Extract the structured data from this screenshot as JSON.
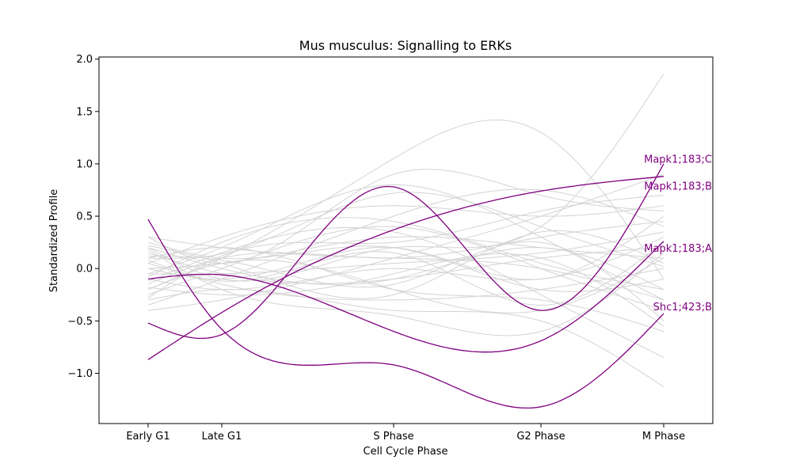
{
  "chart_data": {
    "type": "line",
    "title": "Mus musculus: Signalling to ERKs",
    "xlabel": "Cell Cycle Phase",
    "ylabel": "Standardized Profile",
    "categories": [
      "Early G1",
      "Late G1",
      "S Phase",
      "G2 Phase",
      "M Phase"
    ],
    "x": [
      0,
      0.6,
      2,
      3.2,
      4.2
    ],
    "xlim": [
      -0.4,
      4.6
    ],
    "ylim": [
      -1.48,
      2.02
    ],
    "yticks": [
      -1.0,
      -0.5,
      0.0,
      0.5,
      1.0,
      1.5,
      2.0
    ],
    "ytick_labels": [
      "−1.0",
      "−0.5",
      "0.0",
      "0.5",
      "1.0",
      "1.5",
      "2.0"
    ],
    "grid": false,
    "colors": {
      "background": "#6a6a6a",
      "highlight": "#800080",
      "axis": "#000000"
    },
    "highlighted": [
      {
        "name": "Mapk1;183;C",
        "values": [
          -0.52,
          -0.63,
          0.78,
          -0.4,
          1.0
        ]
      },
      {
        "name": "Mapk1;183;B",
        "values": [
          -0.87,
          -0.42,
          0.37,
          0.74,
          0.88
        ]
      },
      {
        "name": "Mapk1;183;A",
        "values": [
          -0.1,
          -0.06,
          -0.6,
          -0.69,
          0.26
        ]
      },
      {
        "name": "Shc1;423;B",
        "values": [
          0.47,
          -0.58,
          -0.92,
          -1.32,
          -0.43
        ]
      }
    ],
    "background_series": [
      [
        0.1,
        0.14,
        0.72,
        0.4,
        0.02
      ],
      [
        -0.2,
        0.1,
        1.05,
        1.3,
        -0.1
      ],
      [
        0.3,
        0.05,
        0.9,
        0.7,
        0.55
      ],
      [
        -0.35,
        -0.1,
        0.5,
        0.75,
        0.4
      ],
      [
        0.05,
        0.3,
        0.6,
        0.5,
        0.6
      ],
      [
        -0.05,
        0.2,
        0.8,
        0.3,
        -0.3
      ],
      [
        0.2,
        -0.1,
        0.2,
        0.4,
        1.86
      ],
      [
        -0.4,
        -0.3,
        0.1,
        0.5,
        0.9
      ],
      [
        0.0,
        0.05,
        0.3,
        0.2,
        0.1
      ],
      [
        0.15,
        -0.05,
        -0.1,
        0.1,
        0.2
      ],
      [
        -0.1,
        -0.2,
        0.0,
        -0.1,
        0.3
      ],
      [
        0.25,
        0.1,
        0.2,
        -0.2,
        -0.1
      ],
      [
        -0.25,
        0.0,
        0.4,
        0.0,
        -0.4
      ],
      [
        0.05,
        -0.15,
        -0.3,
        -0.2,
        0.0
      ],
      [
        -0.15,
        0.1,
        0.1,
        0.3,
        0.45
      ],
      [
        0.1,
        0.2,
        -0.2,
        -0.3,
        -0.6
      ],
      [
        -0.3,
        -0.2,
        -0.4,
        -0.5,
        -1.13
      ],
      [
        0.2,
        0.0,
        -0.1,
        0.2,
        -0.2
      ],
      [
        0.0,
        -0.1,
        0.2,
        -0.1,
        0.5
      ],
      [
        -0.2,
        0.05,
        -0.2,
        -0.4,
        0.1
      ],
      [
        0.3,
        0.2,
        0.1,
        0.0,
        -0.3
      ],
      [
        -0.05,
        -0.05,
        0.05,
        0.15,
        0.35
      ],
      [
        0.12,
        0.08,
        -0.15,
        0.25,
        -0.5
      ],
      [
        -0.12,
        0.15,
        0.35,
        -0.25,
        -0.85
      ],
      [
        0.18,
        -0.2,
        -0.45,
        -0.6,
        0.15
      ],
      [
        -0.28,
        0.12,
        0.25,
        0.55,
        0.7
      ],
      [
        0.08,
        -0.12,
        0.15,
        -0.35,
        0.25
      ],
      [
        -0.08,
        0.25,
        0.45,
        0.05,
        -0.2
      ],
      [
        0.22,
        0.05,
        -0.25,
        0.35,
        0.05
      ],
      [
        -0.18,
        -0.25,
        -0.05,
        0.1,
        -0.55
      ]
    ],
    "labels": [
      {
        "text": "Mapk1;183;C",
        "y": 1.05
      },
      {
        "text": "Mapk1;183;B",
        "y": 0.79
      },
      {
        "text": "Mapk1;183;A",
        "y": 0.2
      },
      {
        "text": "Shc1;423;B",
        "y": -0.36
      }
    ]
  }
}
